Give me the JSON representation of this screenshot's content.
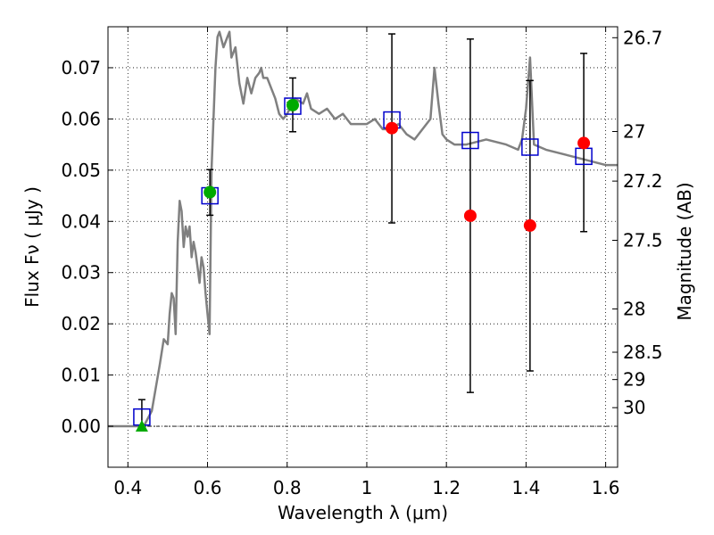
{
  "chart_data": {
    "type": "scatter",
    "xlabel": "Wavelength  λ (μm)",
    "ylabel": "Flux  Fν  ( μJy )",
    "y2label": "Magnitude (AB)",
    "xlim": [
      0.35,
      1.63
    ],
    "ylim": [
      -0.008,
      0.078
    ],
    "grid": true,
    "x_ticks": [
      {
        "value": 0.4,
        "label": "0.4"
      },
      {
        "value": 0.6,
        "label": "0.6"
      },
      {
        "value": 0.8,
        "label": "0.8"
      },
      {
        "value": 1.0,
        "label": "1"
      },
      {
        "value": 1.2,
        "label": "1.2"
      },
      {
        "value": 1.4,
        "label": "1.4"
      },
      {
        "value": 1.6,
        "label": "1.6"
      }
    ],
    "y_ticks": [
      {
        "value": 0.0,
        "label": "0.00"
      },
      {
        "value": 0.01,
        "label": "0.01"
      },
      {
        "value": 0.02,
        "label": "0.02"
      },
      {
        "value": 0.03,
        "label": "0.03"
      },
      {
        "value": 0.04,
        "label": "0.04"
      },
      {
        "value": 0.05,
        "label": "0.05"
      },
      {
        "value": 0.06,
        "label": "0.06"
      },
      {
        "value": 0.07,
        "label": "0.07"
      }
    ],
    "y2_ticks": [
      {
        "value": 26.7,
        "label": "26.7"
      },
      {
        "value": 27.0,
        "label": "27"
      },
      {
        "value": 27.2,
        "label": "27.2"
      },
      {
        "value": 27.5,
        "label": "27.5"
      },
      {
        "value": 28.0,
        "label": "28"
      },
      {
        "value": 28.5,
        "label": "28.5"
      },
      {
        "value": 29.0,
        "label": "29"
      },
      {
        "value": 30.0,
        "label": "30"
      }
    ],
    "colors": {
      "model": "#808080",
      "model_photometry": "#0000cc",
      "observed_detection": "#00aa00",
      "observed_other": "#ff0000",
      "errorbar": "#000000",
      "zero_line": "#000000"
    },
    "series": [
      {
        "kind": "model_spectrum",
        "x": [
          0.35,
          0.4,
          0.44,
          0.46,
          0.48,
          0.49,
          0.5,
          0.505,
          0.51,
          0.515,
          0.52,
          0.525,
          0.53,
          0.535,
          0.54,
          0.545,
          0.55,
          0.555,
          0.56,
          0.565,
          0.57,
          0.575,
          0.58,
          0.585,
          0.59,
          0.595,
          0.6,
          0.605,
          0.61,
          0.615,
          0.62,
          0.625,
          0.63,
          0.64,
          0.65,
          0.655,
          0.66,
          0.67,
          0.68,
          0.69,
          0.7,
          0.71,
          0.72,
          0.73,
          0.735,
          0.74,
          0.75,
          0.76,
          0.77,
          0.78,
          0.79,
          0.8,
          0.82,
          0.84,
          0.85,
          0.86,
          0.88,
          0.9,
          0.92,
          0.94,
          0.96,
          0.98,
          1.0,
          1.02,
          1.04,
          1.06,
          1.08,
          1.1,
          1.12,
          1.14,
          1.16,
          1.17,
          1.18,
          1.19,
          1.2,
          1.22,
          1.25,
          1.3,
          1.35,
          1.38,
          1.39,
          1.4,
          1.41,
          1.42,
          1.45,
          1.5,
          1.55,
          1.6,
          1.63
        ],
        "y": [
          0.0,
          0.0,
          0.0,
          0.003,
          0.012,
          0.017,
          0.016,
          0.022,
          0.026,
          0.025,
          0.018,
          0.036,
          0.044,
          0.042,
          0.035,
          0.039,
          0.037,
          0.039,
          0.033,
          0.036,
          0.034,
          0.031,
          0.028,
          0.033,
          0.031,
          0.026,
          0.022,
          0.018,
          0.05,
          0.06,
          0.07,
          0.076,
          0.077,
          0.074,
          0.076,
          0.077,
          0.072,
          0.074,
          0.067,
          0.063,
          0.068,
          0.065,
          0.068,
          0.069,
          0.07,
          0.068,
          0.068,
          0.066,
          0.064,
          0.061,
          0.06,
          0.061,
          0.064,
          0.063,
          0.065,
          0.062,
          0.061,
          0.062,
          0.06,
          0.061,
          0.059,
          0.059,
          0.059,
          0.06,
          0.058,
          0.058,
          0.059,
          0.057,
          0.056,
          0.058,
          0.06,
          0.07,
          0.063,
          0.057,
          0.056,
          0.055,
          0.055,
          0.056,
          0.055,
          0.054,
          0.056,
          0.062,
          0.072,
          0.055,
          0.054,
          0.053,
          0.052,
          0.051,
          0.051
        ]
      },
      {
        "kind": "model_photometry",
        "marker": "square",
        "x": [
          0.435,
          0.606,
          0.814,
          1.063,
          1.26,
          1.41,
          1.545
        ],
        "y": [
          0.0018,
          0.045,
          0.0625,
          0.0598,
          0.0558,
          0.0545,
          0.0527
        ]
      },
      {
        "kind": "observed",
        "marker": "circle",
        "x": [
          0.606,
          0.814,
          1.063,
          1.26,
          1.41,
          1.545
        ],
        "y": [
          0.0457,
          0.0627,
          0.0582,
          0.0411,
          0.0392,
          0.0553
        ],
        "yerr_low": [
          0.0412,
          0.0575,
          0.0397,
          0.0066,
          0.0108,
          0.038
        ],
        "yerr_high": [
          0.0501,
          0.068,
          0.0766,
          0.0756,
          0.0675,
          0.0728
        ],
        "color_keys": [
          "observed_detection",
          "observed_detection",
          "observed_other",
          "observed_other",
          "observed_other",
          "observed_other"
        ]
      },
      {
        "kind": "upper_limit",
        "marker": "triangle",
        "x": [
          0.435
        ],
        "y": [
          0.0
        ],
        "yerr_low": [
          0.0
        ],
        "yerr_high": [
          0.0052
        ]
      }
    ]
  }
}
